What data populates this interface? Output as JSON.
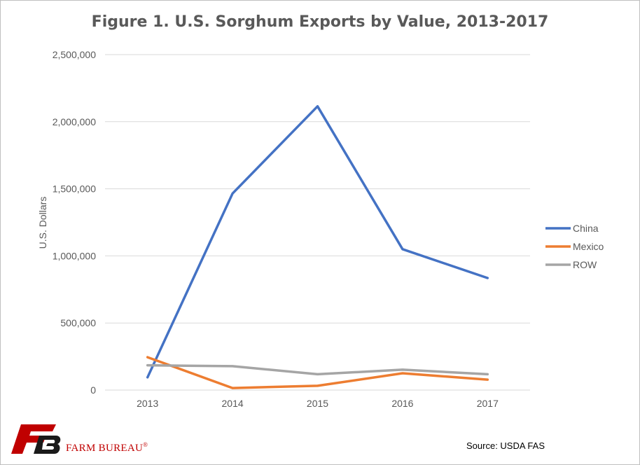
{
  "colors": {
    "china": "#4472c4",
    "mexico": "#ed7d31",
    "row": "#a5a5a5",
    "grid": "#d9d9d9",
    "text": "#595959",
    "brand": "#c00000"
  },
  "source": "Source: USDA FAS",
  "brand": {
    "name": "FARM BUREAU",
    "mark": "®",
    "logo_icon": "farm-bureau-logo-icon"
  },
  "chart_data": {
    "type": "line",
    "title": "Figure 1. U.S. Sorghum Exports by Value, 2013-2017",
    "xlabel": "",
    "ylabel": "U.S. Dollars",
    "categories": [
      "2013",
      "2014",
      "2015",
      "2016",
      "2017"
    ],
    "ylim": [
      0,
      2500000
    ],
    "yticks": [
      0,
      500000,
      1000000,
      1500000,
      2000000,
      2500000
    ],
    "ytick_labels": [
      "0",
      "500,000",
      "1,000,000",
      "1,500,000",
      "2,000,000",
      "2,500,000"
    ],
    "grid": true,
    "legend_position": "right",
    "series": [
      {
        "name": "China",
        "color": "#4472c4",
        "values": [
          95000,
          1465000,
          2115000,
          1050000,
          835000
        ]
      },
      {
        "name": "Mexico",
        "color": "#ed7d31",
        "values": [
          245000,
          15000,
          32000,
          125000,
          78000
        ]
      },
      {
        "name": "ROW",
        "color": "#a5a5a5",
        "values": [
          185000,
          178000,
          118000,
          152000,
          118000
        ]
      }
    ]
  }
}
